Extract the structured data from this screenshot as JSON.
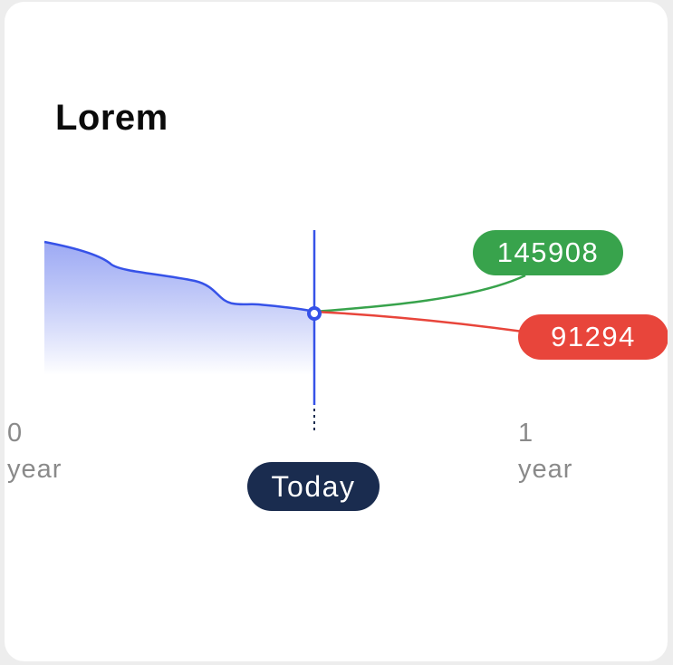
{
  "chart_data": {
    "type": "line",
    "title": "Lorem",
    "x_ticks": [
      {
        "value": "0",
        "unit": "year"
      },
      {
        "value": "1",
        "unit": "year"
      }
    ],
    "marker_label": "Today",
    "series": [
      {
        "x": [
          0,
          0.08,
          0.15,
          0.2,
          0.3,
          0.4,
          0.45,
          0.48,
          0.5
        ],
        "y": [
          200000,
          193000,
          178000,
          174000,
          168000,
          150000,
          147000,
          145000,
          141000
        ]
      },
      {
        "x": [
          0.5,
          1.0
        ],
        "y": [
          141000,
          145908
        ],
        "value_label": "145908"
      },
      {
        "x": [
          0.5,
          1.0
        ],
        "y": [
          141000,
          91294
        ],
        "value_label": "91294"
      }
    ],
    "grid": false
  },
  "colors": {
    "history_line": "#3652e8",
    "history_fill_top": "#8c9bf2",
    "optimistic_line": "#38a34c",
    "pessimistic_line": "#e8453b",
    "today_pill": "#1a2c4f"
  }
}
